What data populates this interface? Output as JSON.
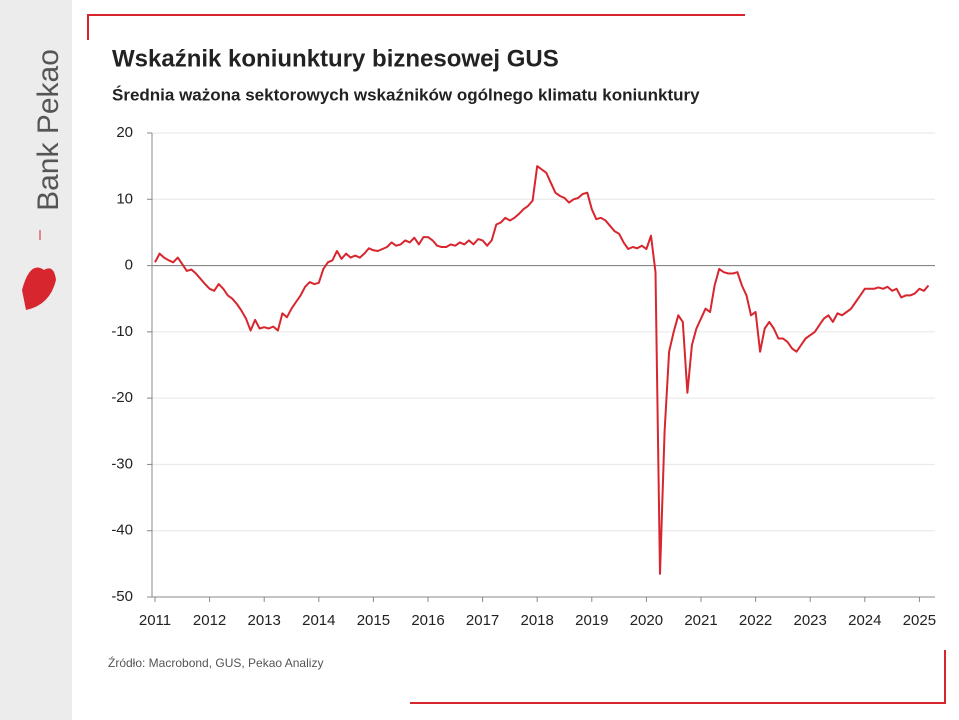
{
  "brand": "Bank Pekao",
  "chart_data": {
    "type": "line",
    "title": "Wskaźnik koniunktury biznesowej GUS",
    "subtitle": "Średnia ważona sektorowych wskaźników ogólnego klimatu koniunktury",
    "source": "Źródło: Macrobond, GUS, Pekao Analizy",
    "categories": [
      "2011",
      null,
      null,
      null,
      null,
      null,
      null,
      null,
      null,
      null,
      null,
      null,
      "2012",
      null,
      null,
      null,
      null,
      null,
      null,
      null,
      null,
      null,
      null,
      null,
      "2013",
      null,
      null,
      null,
      null,
      null,
      null,
      null,
      null,
      null,
      null,
      null,
      "2014",
      null,
      null,
      null,
      null,
      null,
      null,
      null,
      null,
      null,
      null,
      null,
      "2015",
      null,
      null,
      null,
      null,
      null,
      null,
      null,
      null,
      null,
      null,
      null,
      "2016",
      null,
      null,
      null,
      null,
      null,
      null,
      null,
      null,
      null,
      null,
      null,
      "2017",
      null,
      null,
      null,
      null,
      null,
      null,
      null,
      null,
      null,
      null,
      null,
      "2018",
      null,
      null,
      null,
      null,
      null,
      null,
      null,
      null,
      null,
      null,
      null,
      "2019",
      null,
      null,
      null,
      null,
      null,
      null,
      null,
      null,
      null,
      null,
      null,
      "2020",
      null,
      null,
      null,
      null,
      null,
      null,
      null,
      null,
      null,
      null,
      null,
      "2021",
      null,
      null,
      null,
      null,
      null,
      null,
      null,
      null,
      null,
      null,
      null,
      "2022",
      null,
      null,
      null,
      null,
      null,
      null,
      null,
      null,
      null,
      null,
      null,
      "2023",
      null,
      null,
      null,
      null,
      null,
      null,
      null,
      null,
      null,
      null,
      null,
      "2024",
      null,
      null,
      null,
      null,
      null,
      null,
      null,
      null,
      null,
      null,
      null,
      "2025",
      null,
      null
    ],
    "series": [
      {
        "name": "Wskaźnik koniunktury",
        "color": "#d7262e",
        "values": [
          0.5,
          1.8,
          1.2,
          0.8,
          0.5,
          1.2,
          0.2,
          -0.8,
          -0.6,
          -1.2,
          -2,
          -2.8,
          -3.5,
          -3.8,
          -2.8,
          -3.5,
          -4.5,
          -5,
          -5.8,
          -6.8,
          -8,
          -9.8,
          -8.2,
          -9.5,
          -9.3,
          -9.5,
          -9.2,
          -9.8,
          -7.2,
          -7.8,
          -6.5,
          -5.5,
          -4.5,
          -3.2,
          -2.5,
          -2.8,
          -2.6,
          -0.5,
          0.5,
          0.8,
          2.2,
          1,
          1.8,
          1.2,
          1.5,
          1.2,
          1.8,
          2.6,
          2.3,
          2.2,
          2.5,
          2.8,
          3.5,
          3,
          3.2,
          3.8,
          3.5,
          4.2,
          3.2,
          4.3,
          4.3,
          3.8,
          3,
          2.8,
          2.8,
          3.2,
          3,
          3.5,
          3.2,
          3.8,
          3.2,
          4,
          3.8,
          3,
          3.8,
          6.2,
          6.5,
          7.2,
          6.8,
          7.2,
          7.8,
          8.5,
          9,
          9.8,
          15,
          14.5,
          14,
          12.5,
          11,
          10.5,
          10.2,
          9.5,
          10,
          10.2,
          10.8,
          11,
          8.5,
          7,
          7.2,
          6.8,
          6,
          5.2,
          4.8,
          3.5,
          2.5,
          2.8,
          2.6,
          3,
          2.5,
          4.5,
          -1,
          -46.5,
          -25,
          -13,
          -10,
          -7.5,
          -8.5,
          -19.2,
          -12,
          -9.5,
          -8,
          -6.5,
          -7,
          -3,
          -0.5,
          -1,
          -1.2,
          -1.2,
          -1,
          -3,
          -4.5,
          -7.5,
          -7,
          -13,
          -9.5,
          -8.5,
          -9.5,
          -11,
          -11,
          -11.5,
          -12.5,
          -13,
          -12,
          -11,
          -10.5,
          -10,
          -9,
          -8,
          -7.5,
          -8.5,
          -7.2,
          -7.5,
          -7,
          -6.5,
          -5.5,
          -4.5,
          -3.5,
          -3.5,
          -3.5,
          -3.3,
          -3.5,
          -3.2,
          -3.8,
          -3.5,
          -4.8,
          -4.5,
          -4.5,
          -4.2,
          -3.5,
          -3.8,
          -3
        ]
      }
    ],
    "ylim": [
      -50,
      20
    ],
    "yticks": [
      -50,
      -40,
      -30,
      -20,
      -10,
      0,
      10,
      20
    ],
    "grid": true
  }
}
